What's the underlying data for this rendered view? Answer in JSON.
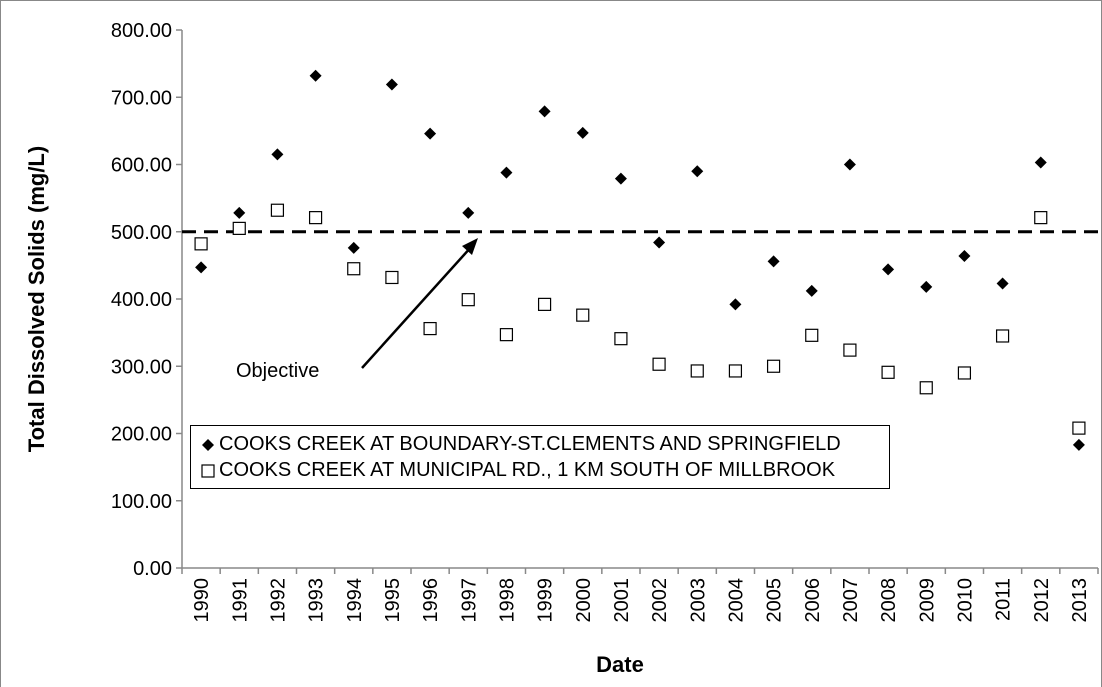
{
  "chart_data": {
    "type": "scatter",
    "x_label": "Date",
    "y_label": "Total Dissolved Solids (mg/L)",
    "categories": [
      "1990",
      "1991",
      "1992",
      "1993",
      "1994",
      "1995",
      "1996",
      "1997",
      "1998",
      "1999",
      "2000",
      "2001",
      "2002",
      "2003",
      "2004",
      "2005",
      "2006",
      "2007",
      "2008",
      "2009",
      "2010",
      "2011",
      "2012",
      "2013"
    ],
    "series": [
      {
        "name": "COOKS CREEK AT BOUNDARY-ST.CLEMENTS AND SPRINGFIELD",
        "color": "#000000",
        "marker": "diamond",
        "values": [
          447,
          528,
          615,
          732,
          476,
          719,
          646,
          528,
          588,
          679,
          647,
          579,
          484,
          590,
          392,
          456,
          412,
          600,
          444,
          418,
          464,
          423,
          603,
          183
        ]
      },
      {
        "name": "COOKS CREEK AT MUNICIPAL RD., 1 KM SOUTH OF MILLBROOK",
        "color": "#000000",
        "marker": "square",
        "values": [
          482,
          505,
          532,
          521,
          445,
          432,
          356,
          399,
          347,
          392,
          376,
          341,
          303,
          293,
          293,
          300,
          346,
          324,
          291,
          268,
          290,
          345,
          521,
          208
        ]
      }
    ],
    "ylim": [
      0,
      800
    ],
    "yticks": [
      {
        "value": 0,
        "label": "0.00"
      },
      {
        "value": 100,
        "label": "100.00"
      },
      {
        "value": 200,
        "label": "200.00"
      },
      {
        "value": 300,
        "label": "300.00"
      },
      {
        "value": 400,
        "label": "400.00"
      },
      {
        "value": 500,
        "label": "500.00"
      },
      {
        "value": 600,
        "label": "600.00"
      },
      {
        "value": 700,
        "label": "700.00"
      },
      {
        "value": 800,
        "label": "800.00"
      }
    ],
    "objective": {
      "value": 500,
      "label": "Objective"
    },
    "grid": false
  }
}
